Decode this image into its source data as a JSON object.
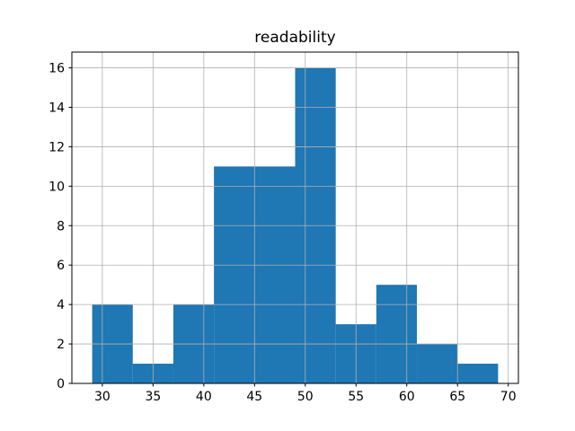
{
  "colors": {
    "bar": "#1f77b4",
    "grid": "#b0b0b0",
    "axis": "#000000",
    "background": "#ffffff"
  },
  "chart_data": {
    "type": "bar",
    "subtype": "histogram",
    "title": "readability",
    "xlabel": "",
    "ylabel": "",
    "bin_edges": [
      29,
      33,
      37,
      41,
      45,
      49,
      53,
      57,
      61,
      65,
      69
    ],
    "values": [
      4,
      1,
      4,
      11,
      11,
      16,
      3,
      5,
      2,
      1
    ],
    "xticks": [
      30,
      35,
      40,
      45,
      50,
      55,
      60,
      65,
      70
    ],
    "yticks": [
      0,
      2,
      4,
      6,
      8,
      10,
      12,
      14,
      16
    ],
    "xlim": [
      27,
      71
    ],
    "ylim": [
      0,
      16.8
    ],
    "grid": true,
    "legend": false
  }
}
